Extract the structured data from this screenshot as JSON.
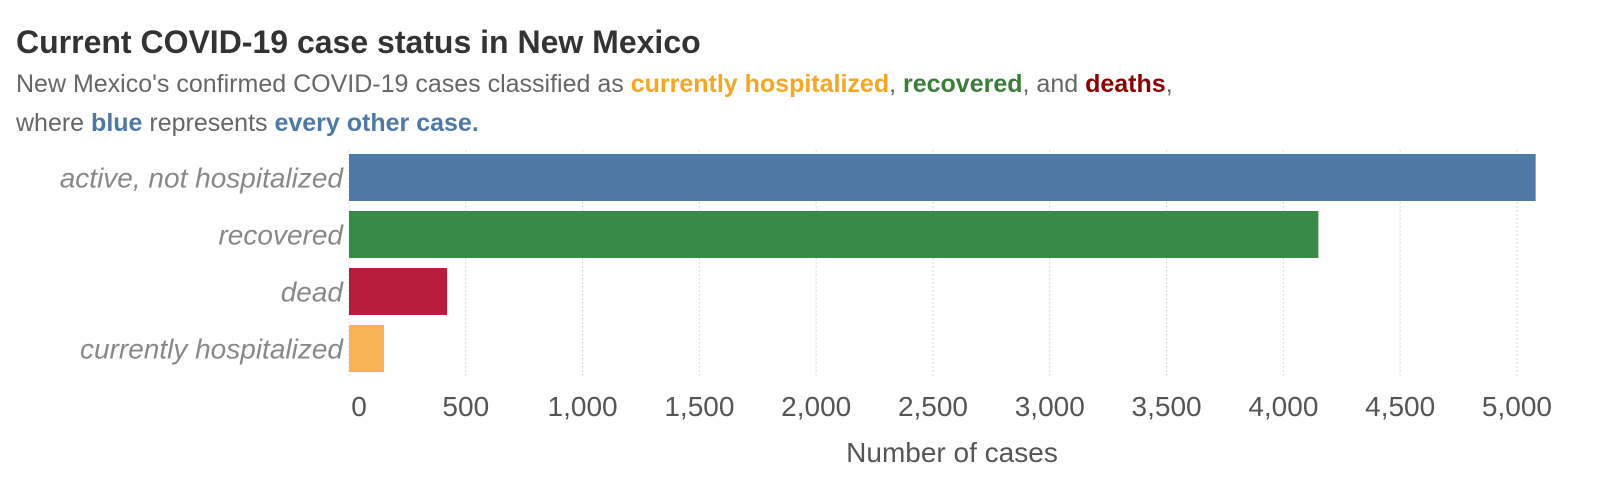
{
  "colors": {
    "title": "#333333",
    "subtitle": "#666666",
    "active": "#4e79a7",
    "recovered": "#388b47",
    "dead": "#b81d3e",
    "hospitalized": "#f8b356",
    "hl_hospitalized": "#f5a623",
    "hl_recovered": "#3a7d3a",
    "hl_deaths": "#8b0000",
    "hl_blue": "#4e79a7",
    "grid": "#cccccc",
    "category_label": "#888888",
    "tick_label": "#555555"
  },
  "subtitle": {
    "line1_a": "New Mexico's confirmed COVID-19 cases classified as ",
    "hl_hospitalized": "currently hospitalized",
    "line1_b": ", ",
    "hl_recovered": "recovered",
    "line1_c": ", and ",
    "hl_deaths": "deaths",
    "line1_d": ",",
    "line2_a": "where ",
    "hl_blue": "blue",
    "line2_b": " represents ",
    "hl_other": "every other case."
  },
  "chart_data": {
    "type": "bar",
    "orientation": "horizontal",
    "title": "Current COVID-19 case status in New Mexico",
    "xlabel": "Number of cases",
    "ylabel": "",
    "categories": [
      "active, not hospitalized",
      "recovered",
      "dead",
      "currently hospitalized"
    ],
    "values": [
      5080,
      4150,
      420,
      150
    ],
    "bar_colors": [
      "#4e79a7",
      "#388b47",
      "#b81d3e",
      "#f8b356"
    ],
    "xlim": [
      0,
      5150
    ],
    "ticks": [
      0,
      500,
      1000,
      1500,
      2000,
      2500,
      3000,
      3500,
      4000,
      4500,
      5000
    ],
    "tick_labels": [
      "0",
      "500",
      "1,000",
      "1,500",
      "2,000",
      "2,500",
      "3,000",
      "3,500",
      "4,000",
      "4,500",
      "5,000"
    ],
    "grid": true,
    "legend": "none"
  }
}
